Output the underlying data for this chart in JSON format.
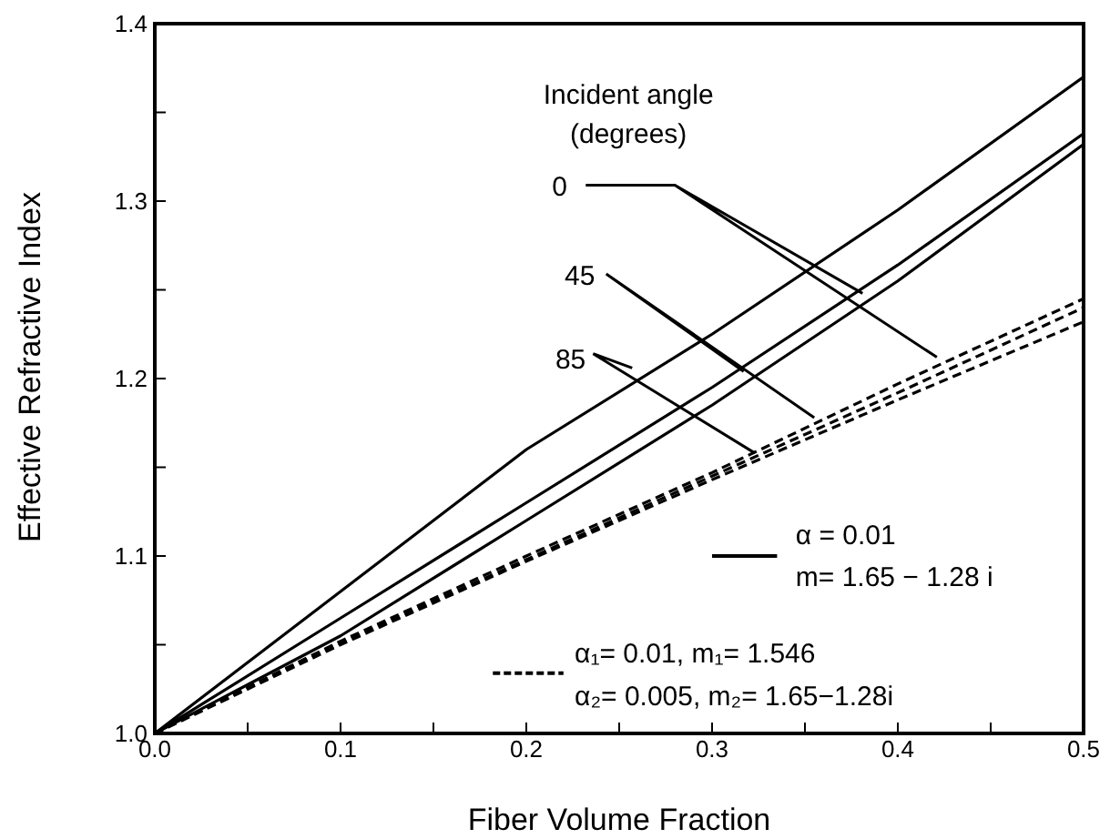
{
  "chart_data": {
    "type": "line",
    "xlabel": "Fiber Volume Fraction",
    "ylabel": "Effective Refractive Index",
    "x": [
      0,
      0.1,
      0.2,
      0.3,
      0.4,
      0.5
    ],
    "series": [
      {
        "color": "#000000",
        "line_style": "solid",
        "values": [
          1,
          1.08,
          1.16,
          1.225,
          1.295,
          1.37
        ]
      },
      {
        "color": "#000000",
        "line_style": "solid",
        "values": [
          1,
          1.065,
          1.13,
          1.195,
          1.264,
          1.338
        ]
      },
      {
        "color": "#000000",
        "line_style": "solid",
        "values": [
          1,
          1.055,
          1.12,
          1.185,
          1.255,
          1.332
        ]
      },
      {
        "color": "#000000",
        "line_style": "dashed",
        "values": [
          1,
          1.052,
          1.1,
          1.147,
          1.197,
          1.245
        ]
      },
      {
        "color": "#000000",
        "line_style": "dashed",
        "values": [
          1,
          1.051,
          1.098,
          1.145,
          1.192,
          1.24
        ]
      },
      {
        "color": "#000000",
        "line_style": "dashed",
        "values": [
          1,
          1.05,
          1.097,
          1.143,
          1.188,
          1.232
        ]
      }
    ],
    "xlim": [
      0,
      0.5
    ],
    "ylim": [
      1,
      1.4
    ],
    "xticks": [
      {
        "value": 0,
        "label": "0.0"
      },
      {
        "value": 0.05,
        "label": null
      },
      0.1,
      {
        "value": 0.15,
        "label": null
      },
      0.2,
      {
        "value": 0.25,
        "label": null
      },
      0.3,
      {
        "value": 0.35,
        "label": null
      },
      0.4,
      {
        "value": 0.45,
        "label": null
      },
      0.5
    ],
    "yticks": [
      {
        "value": 1,
        "label": "1.0"
      },
      {
        "value": 1.05,
        "label": null
      },
      1.1,
      {
        "value": 1.15,
        "label": null
      },
      1.2,
      {
        "value": 1.25,
        "label": null
      },
      1.3,
      {
        "value": 1.35,
        "label": null
      },
      1.4
    ],
    "grid": false,
    "marker": "none",
    "annotations": [
      "Incident angle",
      "(degrees)",
      {
        "text": "0",
        "x": 0.421,
        "y": 1.212
      },
      {
        "text": "45",
        "x": 0.355,
        "y": 1.178
      },
      {
        "text": "85",
        "x": 0.323,
        "y": 1.158
      },
      "α = 0.01",
      "m= 1.65 − 1.28 i",
      "α₁= 0.01, m₁= 1.546",
      "α₂= 0.005, m₂= 1.65−1.28i"
    ]
  }
}
